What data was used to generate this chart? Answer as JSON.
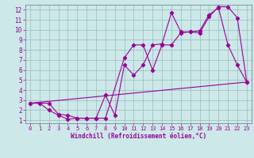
{
  "xlabel": "Windchill (Refroidissement éolien,°C)",
  "xlim": [
    -0.5,
    23.5
  ],
  "ylim": [
    0.7,
    12.5
  ],
  "xticks": [
    0,
    1,
    2,
    3,
    4,
    5,
    6,
    7,
    8,
    9,
    10,
    11,
    12,
    13,
    14,
    15,
    16,
    17,
    18,
    19,
    20,
    21,
    22,
    23
  ],
  "yticks": [
    1,
    2,
    3,
    4,
    5,
    6,
    7,
    8,
    9,
    10,
    11,
    12
  ],
  "bg_color": "#cce8e8",
  "grid_color": "#99bbbb",
  "line_color": "#990099",
  "line1_x": [
    0,
    1,
    2,
    3,
    4,
    5,
    6,
    7,
    8,
    9,
    10,
    11,
    12,
    13,
    14,
    15,
    16,
    17,
    18,
    19,
    20,
    21,
    22,
    23
  ],
  "line1_y": [
    2.7,
    2.7,
    2.0,
    1.5,
    1.1,
    1.2,
    1.2,
    1.2,
    3.5,
    1.5,
    6.5,
    5.5,
    6.5,
    8.5,
    8.6,
    11.7,
    9.8,
    9.8,
    9.9,
    11.5,
    12.2,
    8.5,
    6.5,
    4.8
  ],
  "line2_x": [
    0,
    2,
    3,
    4,
    5,
    6,
    7,
    8,
    10,
    11,
    12,
    13,
    14,
    15,
    16,
    17,
    18,
    19,
    20,
    21,
    22,
    23
  ],
  "line2_y": [
    2.7,
    2.7,
    1.6,
    1.5,
    1.2,
    1.2,
    1.2,
    1.2,
    7.2,
    8.5,
    8.5,
    6.0,
    8.5,
    8.5,
    9.7,
    9.8,
    9.7,
    11.3,
    12.3,
    12.3,
    11.2,
    4.8
  ],
  "line3_x": [
    0,
    23
  ],
  "line3_y": [
    2.7,
    4.8
  ]
}
